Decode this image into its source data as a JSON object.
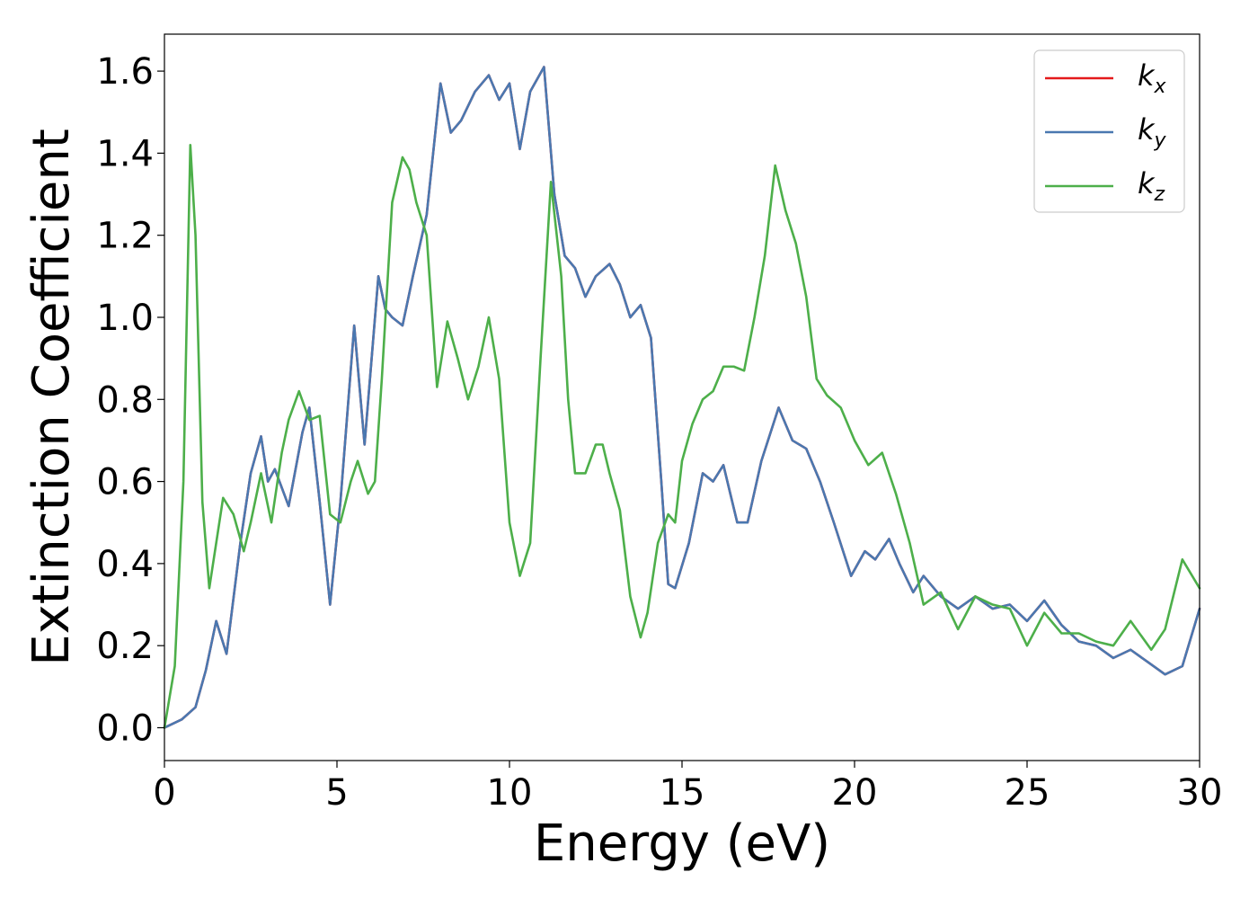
{
  "chart_data": {
    "type": "line",
    "xlabel": "Energy (eV)",
    "ylabel": "Extinction Coefficient",
    "xlim": [
      0,
      30
    ],
    "ylim": [
      -0.08,
      1.69
    ],
    "xticks": [
      0,
      5,
      10,
      15,
      20,
      25,
      30
    ],
    "xtick_labels": [
      "0",
      "5",
      "10",
      "15",
      "20",
      "25",
      "30"
    ],
    "yticks": [
      0.0,
      0.2,
      0.4,
      0.6,
      0.8,
      1.0,
      1.2,
      1.4,
      1.6
    ],
    "ytick_labels": [
      "0.0",
      "0.2",
      "0.4",
      "0.6",
      "0.8",
      "1.0",
      "1.2",
      "1.4",
      "1.6"
    ],
    "grid": false,
    "legend_position": "top-right",
    "series": [
      {
        "name": "k_x",
        "label_base": "k",
        "label_sub": "x",
        "color": "#e41a1c",
        "x": [
          0,
          0.5,
          0.9,
          1.2,
          1.5,
          1.8,
          2.2,
          2.5,
          2.8,
          3.0,
          3.2,
          3.6,
          4.0,
          4.2,
          4.5,
          4.8,
          5.1,
          5.5,
          5.8,
          6.2,
          6.4,
          6.6,
          6.9,
          7.2,
          7.6,
          8.0,
          8.3,
          8.6,
          9.0,
          9.4,
          9.7,
          10.0,
          10.3,
          10.6,
          11.0,
          11.3,
          11.6,
          11.9,
          12.2,
          12.5,
          12.9,
          13.2,
          13.5,
          13.8,
          14.1,
          14.4,
          14.6,
          14.8,
          15.2,
          15.6,
          15.9,
          16.2,
          16.6,
          16.9,
          17.3,
          17.8,
          18.2,
          18.6,
          19.0,
          19.4,
          19.9,
          20.3,
          20.6,
          21.0,
          21.3,
          21.7,
          22.0,
          22.5,
          23.0,
          23.5,
          24.0,
          24.5,
          25.0,
          25.5,
          26.0,
          26.5,
          27.0,
          27.5,
          28.0,
          28.5,
          29.0,
          29.5,
          30.0
        ],
        "y": [
          0.0,
          0.02,
          0.05,
          0.14,
          0.26,
          0.18,
          0.45,
          0.62,
          0.71,
          0.6,
          0.63,
          0.54,
          0.72,
          0.78,
          0.55,
          0.3,
          0.55,
          0.98,
          0.69,
          1.1,
          1.02,
          1.0,
          0.98,
          1.1,
          1.25,
          1.57,
          1.45,
          1.48,
          1.55,
          1.59,
          1.53,
          1.57,
          1.41,
          1.55,
          1.61,
          1.3,
          1.15,
          1.12,
          1.05,
          1.1,
          1.13,
          1.08,
          1.0,
          1.03,
          0.95,
          0.6,
          0.35,
          0.34,
          0.45,
          0.62,
          0.6,
          0.64,
          0.5,
          0.5,
          0.65,
          0.78,
          0.7,
          0.68,
          0.6,
          0.5,
          0.37,
          0.43,
          0.41,
          0.46,
          0.4,
          0.33,
          0.37,
          0.32,
          0.29,
          0.32,
          0.29,
          0.3,
          0.26,
          0.31,
          0.25,
          0.21,
          0.2,
          0.17,
          0.19,
          0.16,
          0.13,
          0.15,
          0.29
        ]
      },
      {
        "name": "k_y",
        "label_base": "k",
        "label_sub": "y",
        "color": "#4a78b0",
        "x": [
          0,
          0.5,
          0.9,
          1.2,
          1.5,
          1.8,
          2.2,
          2.5,
          2.8,
          3.0,
          3.2,
          3.6,
          4.0,
          4.2,
          4.5,
          4.8,
          5.1,
          5.5,
          5.8,
          6.2,
          6.4,
          6.6,
          6.9,
          7.2,
          7.6,
          8.0,
          8.3,
          8.6,
          9.0,
          9.4,
          9.7,
          10.0,
          10.3,
          10.6,
          11.0,
          11.3,
          11.6,
          11.9,
          12.2,
          12.5,
          12.9,
          13.2,
          13.5,
          13.8,
          14.1,
          14.4,
          14.6,
          14.8,
          15.2,
          15.6,
          15.9,
          16.2,
          16.6,
          16.9,
          17.3,
          17.8,
          18.2,
          18.6,
          19.0,
          19.4,
          19.9,
          20.3,
          20.6,
          21.0,
          21.3,
          21.7,
          22.0,
          22.5,
          23.0,
          23.5,
          24.0,
          24.5,
          25.0,
          25.5,
          26.0,
          26.5,
          27.0,
          27.5,
          28.0,
          28.5,
          29.0,
          29.5,
          30.0
        ],
        "y": [
          0.0,
          0.02,
          0.05,
          0.14,
          0.26,
          0.18,
          0.45,
          0.62,
          0.71,
          0.6,
          0.63,
          0.54,
          0.72,
          0.78,
          0.55,
          0.3,
          0.55,
          0.98,
          0.69,
          1.1,
          1.02,
          1.0,
          0.98,
          1.1,
          1.25,
          1.57,
          1.45,
          1.48,
          1.55,
          1.59,
          1.53,
          1.57,
          1.41,
          1.55,
          1.61,
          1.3,
          1.15,
          1.12,
          1.05,
          1.1,
          1.13,
          1.08,
          1.0,
          1.03,
          0.95,
          0.6,
          0.35,
          0.34,
          0.45,
          0.62,
          0.6,
          0.64,
          0.5,
          0.5,
          0.65,
          0.78,
          0.7,
          0.68,
          0.6,
          0.5,
          0.37,
          0.43,
          0.41,
          0.46,
          0.4,
          0.33,
          0.37,
          0.32,
          0.29,
          0.32,
          0.29,
          0.3,
          0.26,
          0.31,
          0.25,
          0.21,
          0.2,
          0.17,
          0.19,
          0.16,
          0.13,
          0.15,
          0.29
        ]
      },
      {
        "name": "k_z",
        "label_base": "k",
        "label_sub": "z",
        "color": "#4daf4a",
        "x": [
          0,
          0.3,
          0.55,
          0.75,
          0.9,
          1.1,
          1.3,
          1.5,
          1.7,
          2.0,
          2.3,
          2.5,
          2.8,
          3.1,
          3.4,
          3.6,
          3.9,
          4.2,
          4.5,
          4.8,
          5.1,
          5.4,
          5.6,
          5.9,
          6.1,
          6.3,
          6.6,
          6.9,
          7.1,
          7.3,
          7.6,
          7.9,
          8.2,
          8.5,
          8.8,
          9.1,
          9.4,
          9.7,
          10.0,
          10.3,
          10.6,
          10.9,
          11.2,
          11.5,
          11.7,
          11.9,
          12.2,
          12.5,
          12.7,
          12.9,
          13.2,
          13.5,
          13.8,
          14.0,
          14.3,
          14.6,
          14.8,
          15.0,
          15.3,
          15.6,
          15.9,
          16.2,
          16.5,
          16.8,
          17.1,
          17.4,
          17.7,
          18.0,
          18.3,
          18.6,
          18.9,
          19.2,
          19.6,
          20.0,
          20.4,
          20.8,
          21.2,
          21.6,
          22.0,
          22.5,
          23.0,
          23.5,
          24.0,
          24.5,
          25.0,
          25.5,
          26.0,
          26.5,
          27.0,
          27.5,
          28.0,
          28.6,
          29.0,
          29.5,
          30.0
        ],
        "y": [
          0.0,
          0.15,
          0.6,
          1.42,
          1.2,
          0.55,
          0.34,
          0.45,
          0.56,
          0.52,
          0.43,
          0.5,
          0.62,
          0.5,
          0.67,
          0.75,
          0.82,
          0.75,
          0.76,
          0.52,
          0.5,
          0.6,
          0.65,
          0.57,
          0.6,
          0.85,
          1.28,
          1.39,
          1.36,
          1.28,
          1.2,
          0.83,
          0.99,
          0.9,
          0.8,
          0.88,
          1.0,
          0.85,
          0.5,
          0.37,
          0.45,
          0.9,
          1.33,
          1.1,
          0.8,
          0.62,
          0.62,
          0.69,
          0.69,
          0.62,
          0.53,
          0.32,
          0.22,
          0.28,
          0.45,
          0.52,
          0.5,
          0.65,
          0.74,
          0.8,
          0.82,
          0.88,
          0.88,
          0.87,
          1.0,
          1.15,
          1.37,
          1.26,
          1.18,
          1.05,
          0.85,
          0.81,
          0.78,
          0.7,
          0.64,
          0.67,
          0.57,
          0.45,
          0.3,
          0.33,
          0.24,
          0.32,
          0.3,
          0.29,
          0.2,
          0.28,
          0.23,
          0.23,
          0.21,
          0.2,
          0.26,
          0.19,
          0.24,
          0.41,
          0.34
        ]
      }
    ]
  }
}
